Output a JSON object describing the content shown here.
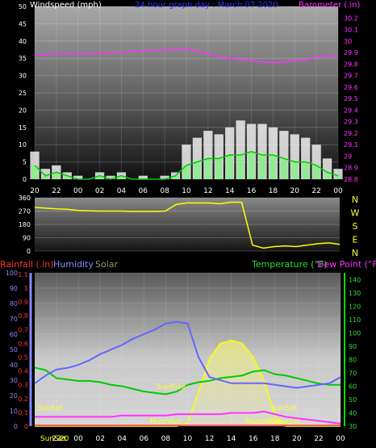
{
  "chart_data": [
    {
      "type": "line",
      "title": "24 hour graph day : March 07 2020",
      "ylabel": "Windspeed (mph)",
      "y2label": "Barometer (.in)",
      "ylim": [
        0,
        50
      ],
      "y2lim": [
        28.8,
        30.3
      ],
      "yticks": [
        "0",
        "5",
        "10",
        "15",
        "20",
        "25",
        "30",
        "35",
        "40",
        "45",
        "50"
      ],
      "y2ticks": [
        "28.8",
        "28.9",
        "29",
        "29.1",
        "29.2",
        "29.3",
        "29.4",
        "29.5",
        "29.6",
        "29.7",
        "29.8",
        "29.9",
        "30",
        "30.1",
        "30.2"
      ],
      "xticks": [
        "20",
        "22",
        "00",
        "02",
        "04",
        "06",
        "08",
        "10",
        "12",
        "14",
        "16",
        "18",
        "20",
        "22",
        "00"
      ],
      "x": [
        0,
        1,
        2,
        3,
        4,
        5,
        6,
        7,
        8,
        9,
        10,
        11,
        12,
        13,
        14,
        15,
        16,
        17,
        18,
        19,
        20,
        21,
        22,
        23,
        24,
        25,
        26,
        27,
        28
      ],
      "series": [
        {
          "name": "wind_gust",
          "values": [
            8,
            3,
            4,
            2,
            1,
            0,
            2,
            1,
            2,
            0,
            1,
            0,
            1,
            2,
            10,
            12,
            14,
            13,
            15,
            17,
            16,
            16,
            15,
            14,
            13,
            12,
            10,
            6,
            3
          ]
        },
        {
          "name": "wind_speed",
          "values": [
            4,
            1,
            2,
            1,
            0,
            0,
            1,
            0,
            1,
            0,
            0,
            0,
            0,
            1,
            4,
            5,
            6,
            6,
            7,
            7,
            8,
            7,
            7,
            6,
            5,
            5,
            4,
            2,
            1
          ]
        },
        {
          "name": "barometer",
          "values": [
            29.88,
            29.88,
            29.89,
            29.89,
            29.89,
            29.89,
            29.89,
            29.9,
            29.9,
            29.91,
            29.91,
            29.92,
            29.92,
            29.93,
            29.93,
            29.91,
            29.89,
            29.87,
            29.85,
            29.84,
            29.83,
            29.82,
            29.81,
            29.82,
            29.83,
            29.84,
            29.86,
            29.87,
            29.87
          ]
        }
      ]
    },
    {
      "type": "line",
      "yticks": [
        "0",
        "90",
        "180",
        "270",
        "360"
      ],
      "ylim": [
        0,
        360
      ],
      "compass": [
        "N",
        "W",
        "S",
        "E",
        "N"
      ],
      "x": [
        0,
        1,
        2,
        3,
        4,
        5,
        6,
        7,
        8,
        9,
        10,
        11,
        12,
        13,
        14,
        15,
        16,
        17,
        18,
        19,
        20,
        21,
        22,
        23,
        24,
        25,
        26,
        27,
        28
      ],
      "series": [
        {
          "name": "wind_direction",
          "values": [
            295,
            290,
            285,
            282,
            275,
            272,
            270,
            270,
            270,
            268,
            268,
            268,
            270,
            315,
            325,
            325,
            325,
            320,
            330,
            330,
            40,
            20,
            30,
            35,
            30,
            40,
            50,
            55,
            45
          ]
        }
      ]
    },
    {
      "type": "line",
      "legend": [
        "Rainfall (.in)",
        "Humidity",
        "Solar",
        "Temperature (°F)",
        "Dew Point (°F)"
      ],
      "left_ticks_humidity": [
        "0",
        "10",
        "20",
        "30",
        "40",
        "50",
        "60",
        "70",
        "80",
        "90",
        "100"
      ],
      "left_ticks_rain": [
        "0",
        "0.1",
        "0.2",
        "0.3",
        "0.4",
        "0.5",
        "0.6",
        "0.7",
        "0.8",
        "0.9",
        "1",
        "1.1"
      ],
      "right_ticks": [
        "30",
        "40",
        "50",
        "60",
        "70",
        "80",
        "90",
        "100",
        "110",
        "120",
        "130",
        "140"
      ],
      "xticks": [
        "20",
        "22",
        "00",
        "02",
        "04",
        "06",
        "08",
        "10",
        "12",
        "14",
        "16",
        "18",
        "20",
        "22",
        "00"
      ],
      "humidity_lim": [
        0,
        100
      ],
      "temp_lim": [
        30,
        145
      ],
      "x": [
        0,
        1,
        2,
        3,
        4,
        5,
        6,
        7,
        8,
        9,
        10,
        11,
        12,
        13,
        14,
        15,
        16,
        17,
        18,
        19,
        20,
        21,
        22,
        23,
        24,
        25,
        26,
        27,
        28
      ],
      "series": [
        {
          "name": "Humidity",
          "values": [
            28,
            33,
            37,
            38,
            40,
            43,
            47,
            50,
            53,
            57,
            60,
            63,
            67,
            68,
            67,
            45,
            32,
            30,
            28,
            28,
            28,
            28,
            27,
            26,
            25,
            26,
            27,
            28,
            32
          ]
        },
        {
          "name": "Temperature (°F)",
          "values": [
            74,
            72,
            66,
            65,
            64,
            64,
            63,
            61,
            60,
            58,
            56,
            55,
            54,
            56,
            61,
            63,
            64,
            66,
            67,
            68,
            71,
            72,
            69,
            68,
            66,
            64,
            62,
            61,
            61
          ]
        },
        {
          "name": "Dew Point (°F)",
          "values": [
            37,
            37,
            37,
            37,
            37,
            37,
            37,
            37,
            38,
            38,
            38,
            38,
            38,
            39,
            39,
            39,
            39,
            39,
            40,
            40,
            40,
            41,
            39,
            37,
            36,
            35,
            34,
            33,
            32
          ]
        },
        {
          "name": "Solar",
          "values": [
            0,
            0,
            0,
            0,
            0,
            0,
            0,
            0,
            0,
            0,
            0,
            0,
            0,
            0,
            2,
            22,
            44,
            54,
            56,
            54,
            45,
            30,
            7,
            0,
            0,
            0,
            0,
            0,
            0
          ]
        },
        {
          "name": "Rainfall (.in)",
          "values": [
            0,
            0,
            0,
            0,
            0,
            0,
            0,
            0,
            0,
            0,
            0,
            0,
            0,
            0,
            0,
            0,
            0,
            0,
            0,
            0,
            0,
            0,
            0,
            0,
            0,
            0,
            0,
            0,
            0
          ]
        }
      ],
      "annotations": {
        "sunset1": "SunSet",
        "sunrise": "SunRise",
        "moonset1": "MoonSet",
        "sunset2": "SunSet",
        "moonrise": "MoonRise",
        "moonset2": "MoonSet",
        "sunset_bottom": "SunSet",
        "bottom_first_tick": "20"
      }
    }
  ]
}
